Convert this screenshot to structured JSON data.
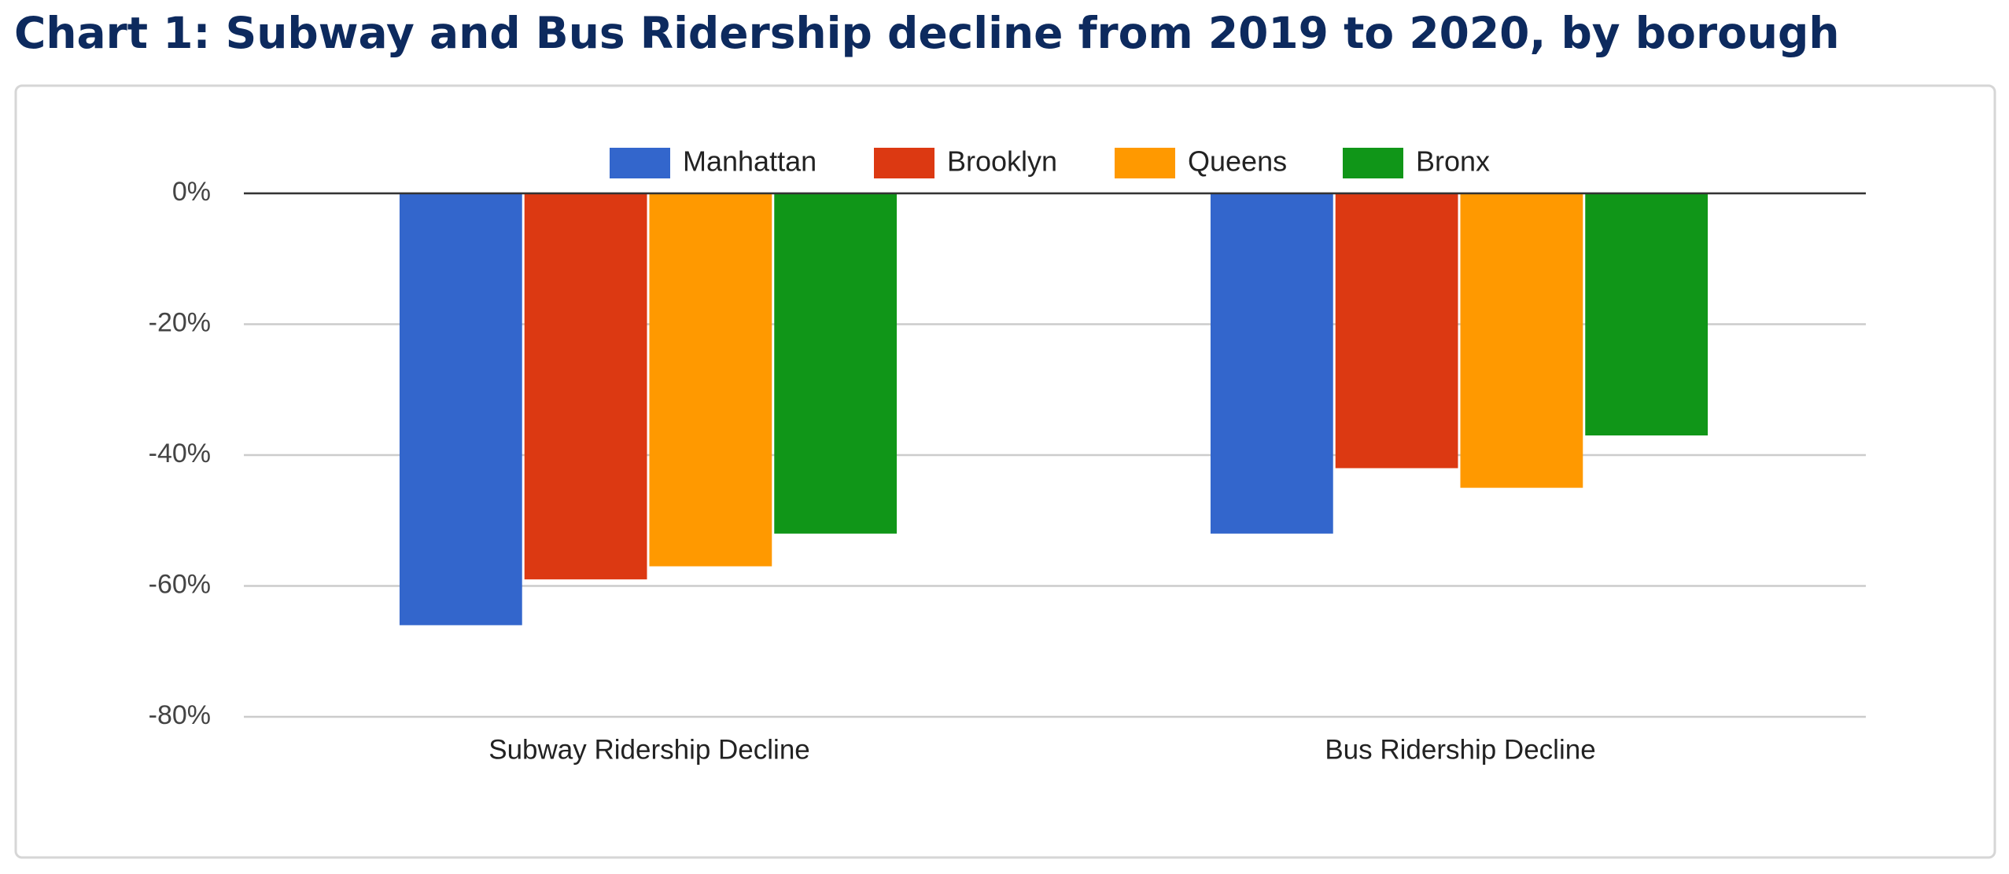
{
  "chart_data": {
    "type": "bar",
    "title": "Chart 1: Subway and Bus Ridership decline from 2019 to 2020, by borough",
    "categories": [
      "Subway Ridership Decline",
      "Bus Ridership Decline"
    ],
    "series": [
      {
        "name": "Manhattan",
        "color": "#3366cc",
        "values": [
          -66,
          -52
        ]
      },
      {
        "name": "Brooklyn",
        "color": "#dc3912",
        "values": [
          -59,
          -42
        ]
      },
      {
        "name": "Queens",
        "color": "#ff9900",
        "values": [
          -57,
          -45
        ]
      },
      {
        "name": "Bronx",
        "color": "#109618",
        "values": [
          -52,
          -37
        ]
      }
    ],
    "ylim": [
      -80,
      0
    ],
    "yticks": [
      {
        "value": 0,
        "label": "0%"
      },
      {
        "value": -20,
        "label": "-20%"
      },
      {
        "value": -40,
        "label": "-40%"
      },
      {
        "value": -60,
        "label": "-60%"
      },
      {
        "value": -80,
        "label": "-80%"
      }
    ],
    "grid": true,
    "legend": "top"
  }
}
